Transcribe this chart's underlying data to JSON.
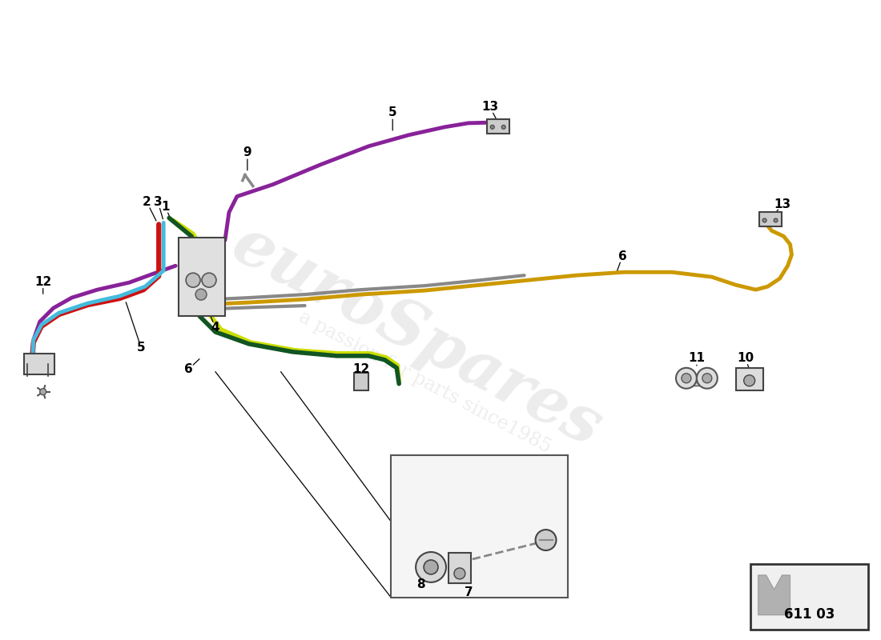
{
  "bg_color": "#ffffff",
  "lw_main": 3.5,
  "colors": {
    "red": "#cc1111",
    "light_blue": "#44bbdd",
    "green_dark": "#115522",
    "yellow_green": "#ccdd00",
    "purple": "#882299",
    "gold": "#cc9900",
    "gray": "#888888",
    "component_fill": "#dddddd",
    "component_edge": "#444444",
    "inset_bg": "#f5f5f5"
  },
  "watermark1": "euroSpares",
  "watermark2": "a passion for parts since1985",
  "badge": "611 03"
}
